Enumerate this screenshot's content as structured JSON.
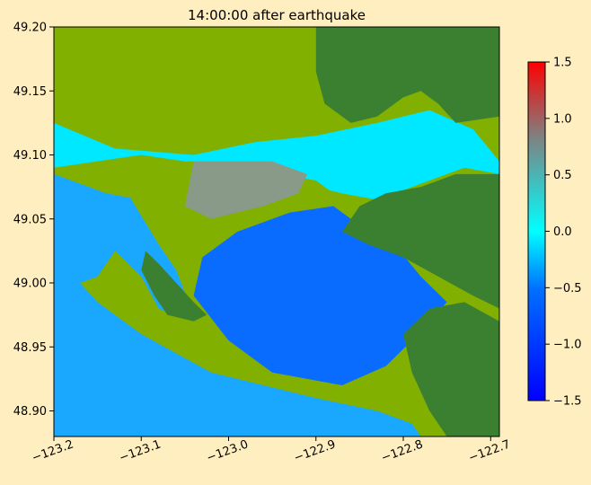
{
  "chart_data": {
    "type": "heatmap",
    "title": "14:00:00 after earthquake",
    "xlabel": "",
    "ylabel": "",
    "xlim": [
      -123.2,
      -122.69
    ],
    "ylim": [
      48.88,
      49.2
    ],
    "x_ticks": [
      -123.2,
      -123.1,
      -123.0,
      -122.9,
      -122.8,
      -122.7
    ],
    "x_tick_labels": [
      "−123.2",
      "−123.1",
      "−123.0",
      "−122.9",
      "−122.8",
      "−122.7"
    ],
    "y_ticks": [
      48.9,
      48.95,
      49.0,
      49.05,
      49.1,
      49.15,
      49.2
    ],
    "y_tick_labels": [
      "48.90",
      "48.95",
      "49.00",
      "49.05",
      "49.10",
      "49.15",
      "49.20"
    ],
    "colorbar": {
      "range": [
        -1.5,
        1.5
      ],
      "ticks": [
        -1.5,
        -1.0,
        -0.5,
        0.0,
        0.5,
        1.0,
        1.5
      ],
      "tick_labels": [
        "−1.5",
        "−1.0",
        "−0.5",
        "0.0",
        "0.5",
        "1.0",
        "1.5"
      ],
      "colors": [
        "#0000ff",
        "#0070ff",
        "#00ffff",
        "#808080",
        "#ff0000"
      ]
    },
    "land_colors": {
      "lowland": "#82b000",
      "highland": "#3a8030"
    },
    "regions": [
      {
        "name": "strait-water",
        "kind": "water",
        "color": "#1aa8ff",
        "polygon": [
          [
            -123.2,
            48.88
          ],
          [
            -123.2,
            49.125
          ],
          [
            -123.12,
            49.075
          ],
          [
            -123.08,
            49.03
          ],
          [
            -123.06,
            49.01
          ],
          [
            -123.04,
            48.975
          ],
          [
            -123.065,
            48.975
          ],
          [
            -123.08,
            48.98
          ],
          [
            -123.1,
            49.005
          ],
          [
            -123.13,
            49.025
          ],
          [
            -123.15,
            49.005
          ],
          [
            -123.17,
            49.0
          ],
          [
            -123.15,
            48.985
          ],
          [
            -123.1,
            48.96
          ],
          [
            -123.02,
            48.93
          ],
          [
            -122.9,
            48.91
          ],
          [
            -122.83,
            48.9
          ],
          [
            -122.79,
            48.89
          ],
          [
            -122.78,
            48.88
          ]
        ]
      },
      {
        "name": "boundary-bay-deep",
        "kind": "water",
        "color": "#0a6cff",
        "polygon": [
          [
            -123.04,
            48.99
          ],
          [
            -123.03,
            49.02
          ],
          [
            -122.99,
            49.04
          ],
          [
            -122.93,
            49.055
          ],
          [
            -122.88,
            49.06
          ],
          [
            -122.84,
            49.04
          ],
          [
            -122.81,
            49.03
          ],
          [
            -122.78,
            49.005
          ],
          [
            -122.75,
            48.985
          ],
          [
            -122.79,
            48.955
          ],
          [
            -122.82,
            48.935
          ],
          [
            -122.87,
            48.92
          ],
          [
            -122.95,
            48.93
          ],
          [
            -123.0,
            48.955
          ]
        ]
      },
      {
        "name": "north-flood-zone",
        "kind": "water",
        "color": "#00e8ff",
        "polygon": [
          [
            -123.2,
            49.125
          ],
          [
            -123.13,
            49.105
          ],
          [
            -123.04,
            49.1
          ],
          [
            -122.97,
            49.11
          ],
          [
            -122.9,
            49.115
          ],
          [
            -122.83,
            49.125
          ],
          [
            -122.77,
            49.135
          ],
          [
            -122.72,
            49.12
          ],
          [
            -122.69,
            49.095
          ],
          [
            -122.69,
            49.085
          ],
          [
            -122.73,
            49.09
          ],
          [
            -122.77,
            49.08
          ],
          [
            -122.83,
            49.065
          ],
          [
            -122.87,
            49.07
          ],
          [
            -122.9,
            49.075
          ],
          [
            -122.97,
            49.065
          ],
          [
            -123.04,
            49.06
          ],
          [
            -123.1,
            49.07
          ],
          [
            -123.2,
            49.09
          ]
        ]
      },
      {
        "name": "delta-lowland-north",
        "kind": "land",
        "color": "#82b000",
        "polygon": [
          [
            -123.2,
            49.2
          ],
          [
            -122.94,
            49.2
          ],
          [
            -122.93,
            49.175
          ],
          [
            -122.95,
            49.15
          ],
          [
            -122.96,
            49.125
          ],
          [
            -122.99,
            49.12
          ],
          [
            -123.05,
            49.12
          ],
          [
            -123.1,
            49.11
          ],
          [
            -123.16,
            49.12
          ],
          [
            -123.2,
            49.13
          ]
        ]
      },
      {
        "name": "delta-lowland-south",
        "kind": "land",
        "color": "#82b000",
        "polygon": [
          [
            -123.2,
            49.09
          ],
          [
            -123.1,
            49.1
          ],
          [
            -123.05,
            49.095
          ],
          [
            -122.99,
            49.095
          ],
          [
            -122.94,
            49.085
          ],
          [
            -122.9,
            49.08
          ],
          [
            -122.88,
            49.07
          ],
          [
            -122.93,
            49.06
          ],
          [
            -122.97,
            49.055
          ],
          [
            -123.01,
            49.045
          ],
          [
            -123.04,
            49.03
          ],
          [
            -123.06,
            49.03
          ],
          [
            -123.08,
            49.045
          ],
          [
            -123.1,
            49.065
          ],
          [
            -123.14,
            49.07
          ],
          [
            -123.2,
            49.085
          ]
        ]
      },
      {
        "name": "tsawwassen-peninsula",
        "kind": "land",
        "color": "#3a8030",
        "polygon": [
          [
            -123.095,
            49.025
          ],
          [
            -123.08,
            49.015
          ],
          [
            -123.06,
            49.0
          ],
          [
            -123.04,
            48.985
          ],
          [
            -123.025,
            48.975
          ],
          [
            -123.04,
            48.97
          ],
          [
            -123.07,
            48.975
          ],
          [
            -123.085,
            48.99
          ],
          [
            -123.1,
            49.01
          ]
        ]
      },
      {
        "name": "surrey-highland",
        "kind": "land",
        "color": "#3a8030",
        "polygon": [
          [
            -122.9,
            49.2
          ],
          [
            -122.69,
            49.2
          ],
          [
            -122.69,
            49.13
          ],
          [
            -122.74,
            49.125
          ],
          [
            -122.76,
            49.14
          ],
          [
            -122.78,
            49.15
          ],
          [
            -122.8,
            49.145
          ],
          [
            -122.83,
            49.13
          ],
          [
            -122.86,
            49.125
          ],
          [
            -122.89,
            49.14
          ],
          [
            -122.9,
            49.165
          ]
        ]
      },
      {
        "name": "white-rock-highland",
        "kind": "land",
        "color": "#3a8030",
        "polygon": [
          [
            -122.87,
            49.04
          ],
          [
            -122.85,
            49.06
          ],
          [
            -122.82,
            49.07
          ],
          [
            -122.78,
            49.075
          ],
          [
            -122.74,
            49.085
          ],
          [
            -122.69,
            49.085
          ],
          [
            -122.69,
            48.98
          ],
          [
            -122.72,
            48.99
          ],
          [
            -122.76,
            49.005
          ],
          [
            -122.8,
            49.02
          ],
          [
            -122.84,
            49.03
          ]
        ]
      },
      {
        "name": "semiahmoo-highland",
        "kind": "land",
        "color": "#3a8030",
        "polygon": [
          [
            -122.8,
            48.96
          ],
          [
            -122.77,
            48.98
          ],
          [
            -122.73,
            48.985
          ],
          [
            -122.69,
            48.97
          ],
          [
            -122.69,
            48.88
          ],
          [
            -122.75,
            48.88
          ],
          [
            -122.77,
            48.9
          ],
          [
            -122.79,
            48.93
          ]
        ]
      },
      {
        "name": "marsh-grey-zone",
        "kind": "land",
        "color": "#8a9a88",
        "polygon": [
          [
            -123.04,
            49.095
          ],
          [
            -122.95,
            49.095
          ],
          [
            -122.91,
            49.085
          ],
          [
            -122.92,
            49.07
          ],
          [
            -122.96,
            49.06
          ],
          [
            -123.02,
            49.05
          ],
          [
            -123.05,
            49.06
          ]
        ]
      }
    ]
  }
}
